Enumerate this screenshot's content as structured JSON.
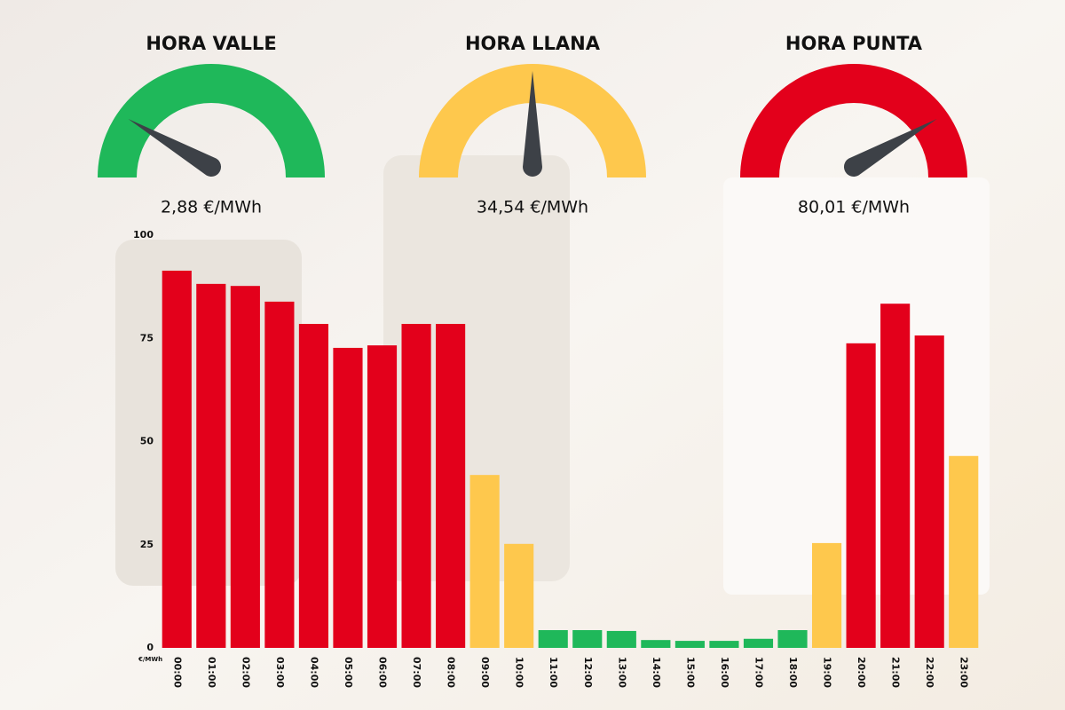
{
  "chart_data": {
    "type": "bar",
    "gauges": [
      {
        "title": "HORA VALLE",
        "value_label": "2,88 €/MWh",
        "color": "#1fb85a"
      },
      {
        "title": "HORA LLANA",
        "value_label": "34,54 €/MWh",
        "color": "#fec84d"
      },
      {
        "title": "HORA PUNTA",
        "value_label": "80,01 €/MWh",
        "color": "#e3001b"
      }
    ],
    "y_unit": "€/MWh",
    "categories": [
      "00:00",
      "01:00",
      "02:00",
      "03:00",
      "04:00",
      "05:00",
      "06:00",
      "07:00",
      "08:00",
      "09:00",
      "10:00",
      "11:00",
      "12:00",
      "13:00",
      "14:00",
      "15:00",
      "16:00",
      "17:00",
      "18:00",
      "19:00",
      "20:00",
      "21:00",
      "22:00",
      "23:00"
    ],
    "values": [
      91.4,
      88.2,
      87.7,
      83.9,
      78.5,
      72.7,
      73.3,
      78.5,
      78.5,
      41.9,
      25.2,
      4.3,
      4.3,
      4.1,
      1.9,
      1.7,
      1.7,
      2.2,
      4.3,
      25.4,
      73.8,
      83.4,
      75.7,
      46.5
    ],
    "colors": [
      "#e3001b",
      "#e3001b",
      "#e3001b",
      "#e3001b",
      "#e3001b",
      "#e3001b",
      "#e3001b",
      "#e3001b",
      "#e3001b",
      "#fec84d",
      "#fec84d",
      "#1fb85a",
      "#1fb85a",
      "#1fb85a",
      "#1fb85a",
      "#1fb85a",
      "#1fb85a",
      "#1fb85a",
      "#1fb85a",
      "#fec84d",
      "#e3001b",
      "#e3001b",
      "#e3001b",
      "#fec84d"
    ],
    "ylim": [
      0,
      100
    ],
    "yticks": [
      0,
      25,
      50,
      75,
      100
    ],
    "grid": false
  }
}
